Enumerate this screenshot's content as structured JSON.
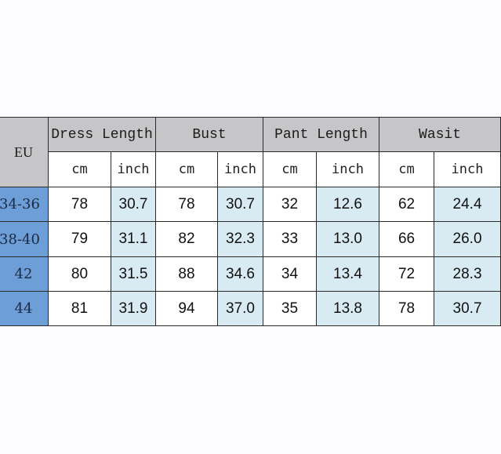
{
  "table": {
    "row_header": "EU",
    "groups": [
      "Dress Length",
      "Bust",
      "Pant Length",
      "Wasit"
    ],
    "units": [
      "cm",
      "inch",
      "cm",
      "inch",
      "cm",
      "inch",
      "cm",
      "inch"
    ],
    "rows": [
      {
        "eu": "34-36",
        "cells": [
          "78",
          "30.7",
          "78",
          "30.7",
          "32",
          "12.6",
          "62",
          "24.4"
        ]
      },
      {
        "eu": "38-40",
        "cells": [
          "79",
          "31.1",
          "82",
          "32.3",
          "33",
          "13.0",
          "66",
          "26.0"
        ]
      },
      {
        "eu": "42",
        "cells": [
          "80",
          "31.5",
          "88",
          "34.6",
          "34",
          "13.4",
          "72",
          "28.3"
        ]
      },
      {
        "eu": "44",
        "cells": [
          "81",
          "31.9",
          "94",
          "37.0",
          "35",
          "13.8",
          "78",
          "30.7"
        ]
      }
    ]
  },
  "colors": {
    "header_bg": "#c6c6c8",
    "eu_bg": "#6e9ed8",
    "inch_bg": "#d8ebf2"
  }
}
